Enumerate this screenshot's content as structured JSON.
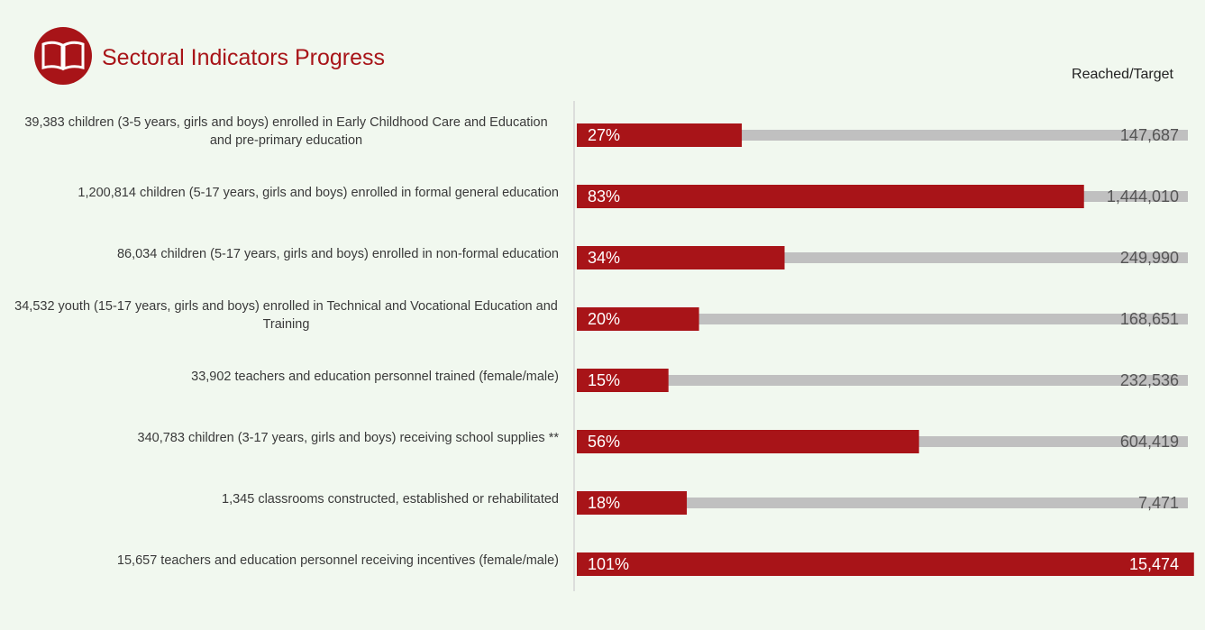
{
  "chart_data": {
    "type": "progress",
    "title": "Sectoral Indicators Progress",
    "legend_title": "Reached/Target",
    "categories": [
      "39,383 children (3-5 years, girls and boys) enrolled in Early Childhood Care and Education and pre-primary education",
      "1,200,814 children (5-17 years, girls and boys) enrolled in formal general education",
      "86,034 children (5-17 years, girls and boys) enrolled in non-formal education",
      "34,532 youth (15-17 years, girls and boys) enrolled in Technical and Vocational Education and Training",
      "33,902 teachers and education personnel trained (female/male)",
      "340,783 children (3-17 years, girls and boys) receiving school supplies **",
      "1,345 classrooms constructed, established or rehabilitated",
      "15,657 teachers and education personnel receiving incentives (female/male)"
    ],
    "values": [
      27,
      83,
      34,
      20,
      15,
      56,
      18,
      101
    ],
    "value_labels": [
      "27%",
      "83%",
      "34%",
      "20%",
      "15%",
      "56%",
      "18%",
      "101%"
    ],
    "targets": [
      147687,
      1444010,
      249990,
      168651,
      232536,
      604419,
      7471,
      15474
    ],
    "target_labels": [
      "147,687",
      "1,444,010",
      "249,990",
      "168,651",
      "232,536",
      "604,419",
      "7,471",
      "15,474"
    ],
    "xlim": [
      0,
      100
    ],
    "color": "#a81418",
    "track_color": "#c0c0c0"
  }
}
